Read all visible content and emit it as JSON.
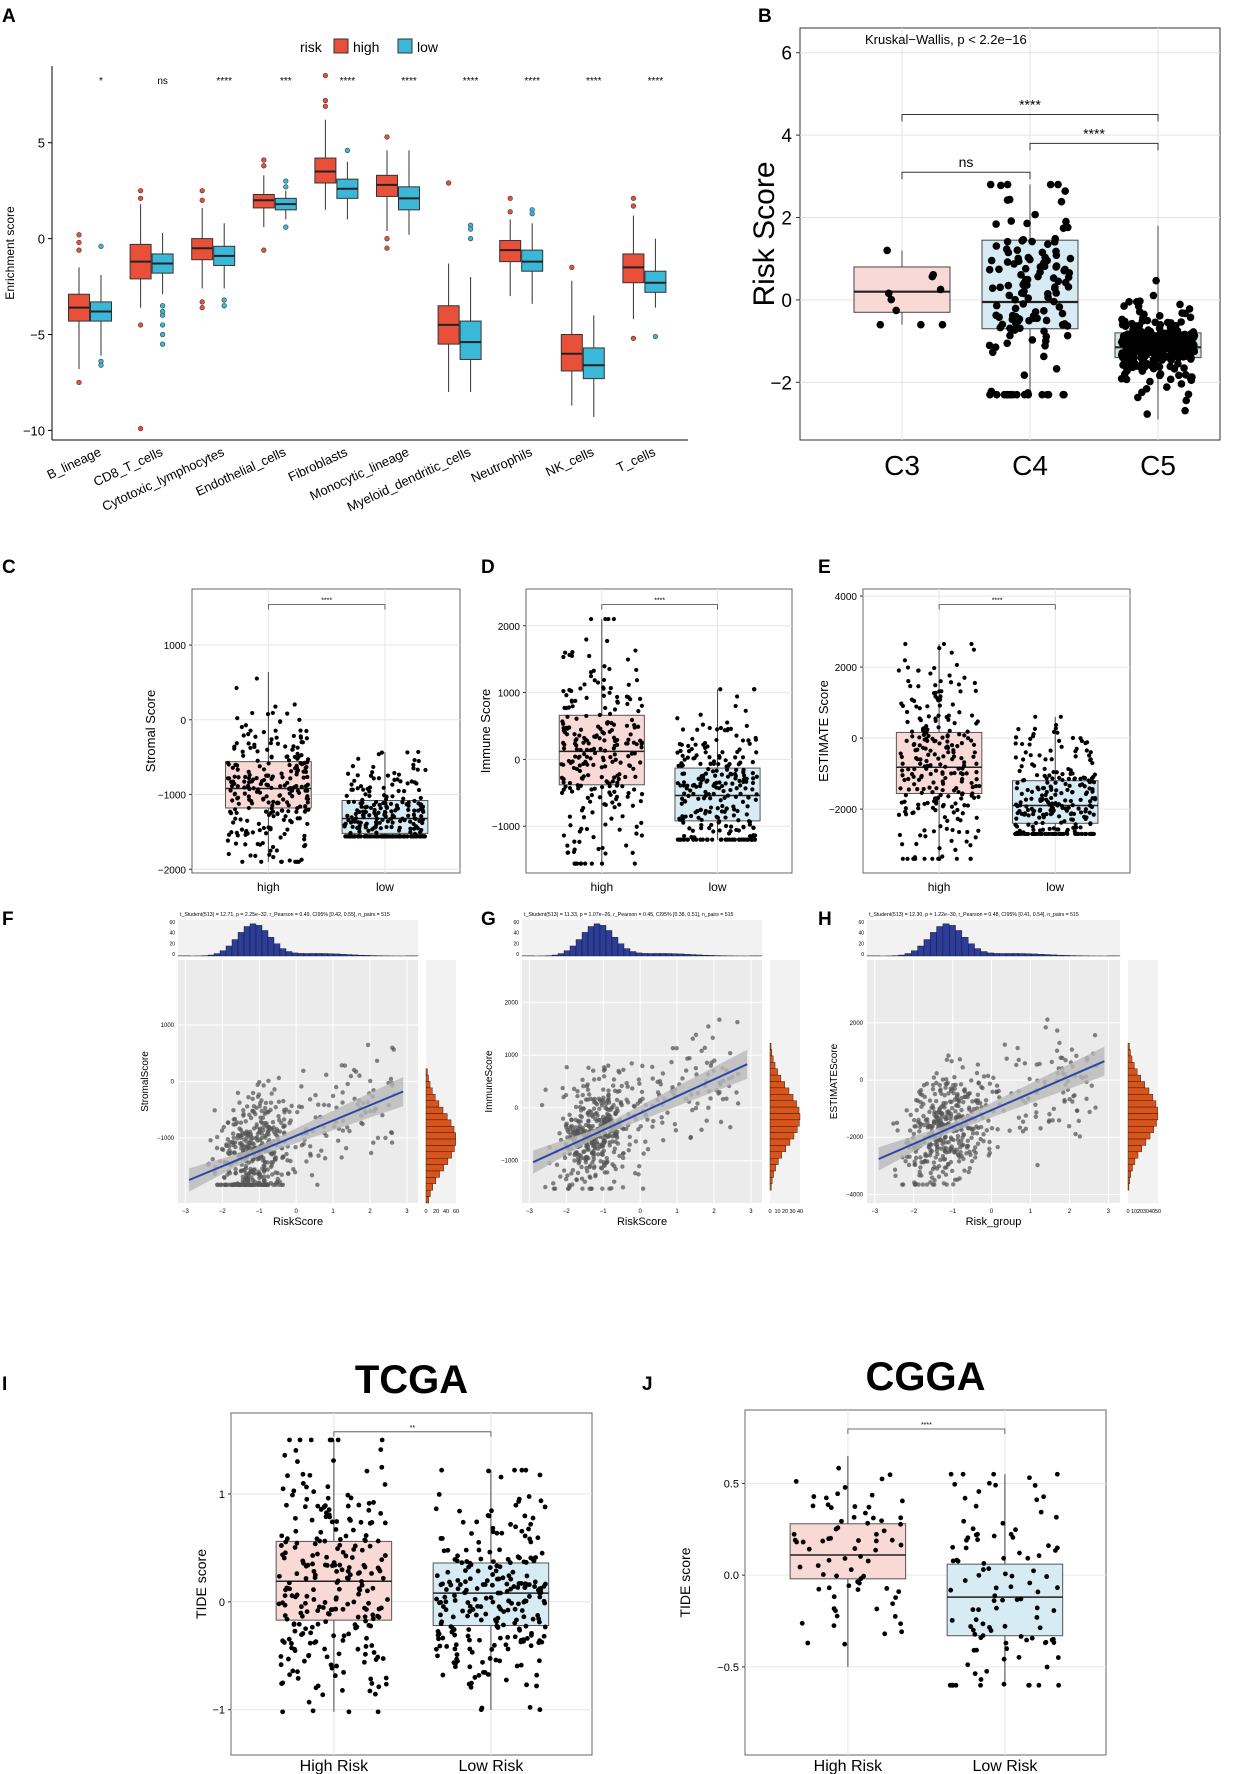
{
  "figure": {
    "panel_letters": [
      "A",
      "B",
      "C",
      "D",
      "E",
      "F",
      "G",
      "H",
      "I",
      "J"
    ]
  },
  "colors": {
    "high_box": "#e8503a",
    "low_box": "#3bb8d8",
    "high_fill": "#f9d9d6",
    "low_fill": "#d6ebf4",
    "c5_fill": "#cfe8e4",
    "hist_blue": "#2d3e9a",
    "hist_orange": "#d9541a",
    "reg_line": "#2e47a6",
    "panel_bg": "#ebebeb"
  },
  "chart_data": [
    {
      "id": "A",
      "type": "box",
      "ylabel": "Enrichment score",
      "ylim": [
        -10.5,
        9
      ],
      "yticks": [
        -10,
        -5,
        0,
        5
      ],
      "ytick_labels": [
        "−10",
        "−5",
        "0",
        "5"
      ],
      "legend": {
        "title": "risk",
        "entries": [
          "high",
          "low"
        ],
        "position": "top"
      },
      "categories": [
        "B_lineage",
        "CD8_T_cells",
        "Cytotoxic_lymphocytes",
        "Endothelial_cells",
        "Fibroblasts",
        "Monocytic_lineage",
        "Myeloid_dendritic_cells",
        "Neutrophils",
        "NK_cells",
        "T_cells"
      ],
      "significance": [
        "*",
        "ns",
        "****",
        "***",
        "****",
        "****",
        "****",
        "****",
        "****",
        "****"
      ],
      "series": [
        {
          "name": "high",
          "stats": [
            {
              "min": -6.8,
              "q1": -4.3,
              "med": -3.6,
              "q3": -2.9,
              "max": -1.5,
              "out": [
                0.2,
                -0.2,
                -0.6,
                -7.5
              ]
            },
            {
              "min": -3.6,
              "q1": -2.1,
              "med": -1.2,
              "q3": -0.3,
              "max": 1.8,
              "out": [
                2.5,
                2.1,
                -4.5,
                -9.9
              ]
            },
            {
              "min": -2.6,
              "q1": -1.1,
              "med": -0.5,
              "q3": 0.0,
              "max": 1.6,
              "out": [
                2.5,
                2.0,
                -3.3,
                -3.6
              ]
            },
            {
              "min": 0.6,
              "q1": 1.6,
              "med": 2.0,
              "q3": 2.3,
              "max": 3.3,
              "out": [
                4.1,
                3.8,
                -0.6
              ]
            },
            {
              "min": 1.5,
              "q1": 2.9,
              "med": 3.5,
              "q3": 4.2,
              "max": 6.2,
              "out": [
                8.5,
                7.2,
                6.9
              ]
            },
            {
              "min": 0.4,
              "q1": 2.2,
              "med": 2.8,
              "q3": 3.3,
              "max": 4.6,
              "out": [
                5.3,
                0.0,
                -0.5
              ]
            },
            {
              "min": -8.0,
              "q1": -5.5,
              "med": -4.5,
              "q3": -3.5,
              "max": -1.3,
              "out": [
                2.9
              ]
            },
            {
              "min": -3.0,
              "q1": -1.2,
              "med": -0.6,
              "q3": -0.1,
              "max": 1.0,
              "out": [
                2.1,
                1.4
              ]
            },
            {
              "min": -8.7,
              "q1": -6.9,
              "med": -6.0,
              "q3": -5.0,
              "max": -2.2,
              "out": [
                -1.5
              ]
            },
            {
              "min": -4.2,
              "q1": -2.3,
              "med": -1.5,
              "q3": -0.8,
              "max": 1.2,
              "out": [
                2.1,
                1.7,
                -5.2
              ]
            }
          ]
        },
        {
          "name": "low",
          "stats": [
            {
              "min": -6.1,
              "q1": -4.3,
              "med": -3.8,
              "q3": -3.3,
              "max": -1.9,
              "out": [
                -0.4,
                -6.4,
                -6.6
              ]
            },
            {
              "min": -2.9,
              "q1": -1.8,
              "med": -1.3,
              "q3": -0.8,
              "max": 0.3,
              "out": [
                -3.5,
                -3.8,
                -4.0,
                -4.5,
                -5.0,
                -5.5
              ]
            },
            {
              "min": -2.6,
              "q1": -1.4,
              "med": -0.9,
              "q3": -0.4,
              "max": 0.8,
              "out": [
                -3.2,
                -3.5
              ]
            },
            {
              "min": 1.0,
              "q1": 1.5,
              "med": 1.8,
              "q3": 2.1,
              "max": 2.5,
              "out": [
                3.0,
                2.7,
                0.6
              ]
            },
            {
              "min": 1.0,
              "q1": 2.1,
              "med": 2.6,
              "q3": 3.1,
              "max": 4.0,
              "out": [
                4.6
              ]
            },
            {
              "min": 0.2,
              "q1": 1.5,
              "med": 2.1,
              "q3": 2.7,
              "max": 4.6,
              "out": []
            },
            {
              "min": -8.0,
              "q1": -6.3,
              "med": -5.4,
              "q3": -4.3,
              "max": -2.0,
              "out": [
                0.7,
                0.5,
                0.0
              ]
            },
            {
              "min": -3.4,
              "q1": -1.7,
              "med": -1.2,
              "q3": -0.6,
              "max": 0.8,
              "out": [
                1.5,
                1.3
              ]
            },
            {
              "min": -9.3,
              "q1": -7.3,
              "med": -6.6,
              "q3": -5.7,
              "max": -4.0,
              "out": []
            },
            {
              "min": -3.6,
              "q1": -2.8,
              "med": -2.3,
              "q3": -1.7,
              "max": 0.0,
              "out": [
                -5.1
              ]
            }
          ]
        }
      ]
    },
    {
      "id": "B",
      "type": "box_jitter",
      "title": "Kruskal−Wallis, p < 2.2e−16",
      "ylabel": "Risk Score",
      "ylim": [
        -3.4,
        6.6
      ],
      "yticks": [
        -2,
        0,
        2,
        4,
        6
      ],
      "ytick_labels": [
        "−2",
        "0",
        "2",
        "4",
        "6"
      ],
      "categories": [
        "C3",
        "C4",
        "C5"
      ],
      "stats": [
        {
          "min": -0.6,
          "q1": -0.3,
          "med": 0.2,
          "q3": 0.8,
          "max": 1.2,
          "n": 10
        },
        {
          "min": -2.3,
          "q1": -0.7,
          "med": -0.05,
          "q3": 1.45,
          "max": 2.8,
          "n": 140
        },
        {
          "min": -2.9,
          "q1": -1.4,
          "med": -1.15,
          "q3": -0.8,
          "max": 1.8,
          "n": 360
        }
      ],
      "comparisons": [
        {
          "groups": [
            "C3",
            "C4"
          ],
          "label": "ns",
          "y": 3.1
        },
        {
          "groups": [
            "C4",
            "C5"
          ],
          "label": "****",
          "y": 3.8
        },
        {
          "groups": [
            "C3",
            "C5"
          ],
          "label": "****",
          "y": 4.5
        }
      ]
    },
    {
      "id": "C",
      "type": "box_jitter",
      "ylabel": "Stromal Score",
      "ylim": [
        -2050,
        1750
      ],
      "yticks": [
        -2000,
        -1000,
        0,
        1000
      ],
      "ytick_labels": [
        "−2000",
        "−1000",
        "0",
        "1000"
      ],
      "categories": [
        "high",
        "low"
      ],
      "significance": "****",
      "stats": [
        {
          "min": -1900,
          "q1": -1180,
          "med": -920,
          "q3": -560,
          "max": 640,
          "n": 260
        },
        {
          "min": -1560,
          "q1": -1520,
          "med": -1320,
          "q3": -1080,
          "max": -430,
          "n": 260
        }
      ]
    },
    {
      "id": "D",
      "type": "box_jitter",
      "ylabel": "Immune Score",
      "ylim": [
        -1700,
        2550
      ],
      "yticks": [
        -1000,
        0,
        1000,
        2000
      ],
      "ytick_labels": [
        "−1000",
        "0",
        "1000",
        "2000"
      ],
      "categories": [
        "high",
        "low"
      ],
      "significance": "****",
      "stats": [
        {
          "min": -1560,
          "q1": -380,
          "med": 120,
          "q3": 660,
          "max": 2100,
          "n": 260
        },
        {
          "min": -1200,
          "q1": -920,
          "med": -540,
          "q3": -130,
          "max": 1050,
          "n": 260
        }
      ]
    },
    {
      "id": "E",
      "type": "box_jitter",
      "ylabel": "ESTIMATE Score",
      "ylim": [
        -3800,
        4200
      ],
      "yticks": [
        -2000,
        0,
        2000,
        4000
      ],
      "ytick_labels": [
        "−2000",
        "0",
        "2000",
        "4000"
      ],
      "categories": [
        "high",
        "low"
      ],
      "significance": "****",
      "stats": [
        {
          "min": -3400,
          "q1": -1560,
          "med": -820,
          "q3": 160,
          "max": 2650,
          "n": 260
        },
        {
          "min": -2700,
          "q1": -2400,
          "med": -1900,
          "q3": -1200,
          "max": 600,
          "n": 260
        }
      ]
    },
    {
      "id": "F",
      "type": "scatter_marginal",
      "subtitle": "t_Student(513) = 12.71, p = 2.25e−32, r_Pearson = 0.49, CI95% [0.42, 0.55], n_pairs = 515",
      "xlabel": "RiskScore",
      "ylabel": "StromalScore",
      "xlim": [
        -3.2,
        3.3
      ],
      "ylim": [
        -2150,
        2150
      ],
      "xticks": [
        -3,
        -2,
        -1,
        0,
        1,
        2,
        3
      ],
      "xtick_labels": [
        "−3",
        "−2",
        "−1",
        "0",
        "1",
        "2",
        "3"
      ],
      "yticks": [
        -1000,
        0,
        1000
      ],
      "ytick_labels": [
        "−1000",
        "0",
        "1000"
      ],
      "hist_ticks": [
        "0",
        "20",
        "40",
        "60"
      ],
      "top_hist_ticks": [
        "60",
        "40",
        "20",
        "0"
      ],
      "fit": {
        "intercept": -960,
        "slope": 270
      },
      "n": 515
    },
    {
      "id": "G",
      "type": "scatter_marginal",
      "subtitle": "t_Student(513) = 11.33, p = 1.07e−26, r_Pearson = 0.45, CI95% [0.38, 0.51], n_pairs = 515",
      "xlabel": "RiskScore",
      "ylabel": "ImmuneScore",
      "xlim": [
        -3.2,
        3.3
      ],
      "ylim": [
        -1800,
        2800
      ],
      "xticks": [
        -3,
        -2,
        -1,
        0,
        1,
        2,
        3
      ],
      "xtick_labels": [
        "−3",
        "−2",
        "−1",
        "0",
        "1",
        "2",
        "3"
      ],
      "yticks": [
        -1000,
        0,
        1000,
        2000
      ],
      "ytick_labels": [
        "−1000",
        "0",
        "1000",
        "2000"
      ],
      "hist_ticks": [
        "0",
        "10",
        "20",
        "30",
        "40"
      ],
      "top_hist_ticks": [
        "60",
        "40",
        "20",
        "0"
      ],
      "fit": {
        "intercept": -100,
        "slope": 320
      },
      "n": 515
    },
    {
      "id": "H",
      "type": "scatter_marginal",
      "subtitle": "t_Student(513) = 12.30, p = 1.22e−30, r_Pearson = 0.48, CI95% [0.41, 0.54], n_pairs = 515",
      "xlabel": "Risk_group",
      "ylabel": "ESTIMATEScore",
      "xlim": [
        -3.2,
        3.3
      ],
      "ylim": [
        -4300,
        4200
      ],
      "xticks": [
        -3,
        -2,
        -1,
        0,
        1,
        2,
        3
      ],
      "xtick_labels": [
        "−3",
        "−2",
        "−1",
        "0",
        "1",
        "2",
        "3"
      ],
      "yticks": [
        -4000,
        -2000,
        0,
        2000
      ],
      "ytick_labels": [
        "−4000",
        "−2000",
        "0",
        "2000"
      ],
      "hist_ticks": [
        "0",
        "10",
        "20",
        "30",
        "40",
        "50"
      ],
      "top_hist_ticks": [
        "60",
        "40",
        "20",
        "0"
      ],
      "fit": {
        "intercept": -1050,
        "slope": 590
      },
      "n": 515
    },
    {
      "id": "I",
      "type": "box_jitter",
      "title": "TCGA",
      "ylabel": "TIDE score",
      "ylim": [
        -1.42,
        1.75
      ],
      "yticks": [
        -1,
        0,
        1
      ],
      "ytick_labels": [
        "−1",
        "0",
        "1"
      ],
      "categories": [
        "High Risk",
        "Low Risk"
      ],
      "significance": "**",
      "stats": [
        {
          "min": -1.02,
          "q1": -0.17,
          "med": 0.19,
          "q3": 0.56,
          "max": 1.5,
          "n": 260
        },
        {
          "min": -1.0,
          "q1": -0.22,
          "med": 0.08,
          "q3": 0.36,
          "max": 1.22,
          "n": 260
        }
      ]
    },
    {
      "id": "J",
      "type": "box_jitter",
      "title": "CGGA",
      "ylabel": "TIDE score",
      "ylim": [
        -0.98,
        0.9
      ],
      "yticks": [
        -0.5,
        0.0,
        0.5
      ],
      "ytick_labels": [
        "−0.5",
        "0.0",
        "0.5"
      ],
      "categories": [
        "High Risk",
        "Low Risk"
      ],
      "significance": "****",
      "stats": [
        {
          "min": -0.5,
          "q1": -0.02,
          "med": 0.11,
          "q3": 0.28,
          "max": 0.65,
          "n": 75
        },
        {
          "min": -0.6,
          "q1": -0.33,
          "med": -0.12,
          "q3": 0.06,
          "max": 0.55,
          "n": 110
        }
      ]
    }
  ]
}
